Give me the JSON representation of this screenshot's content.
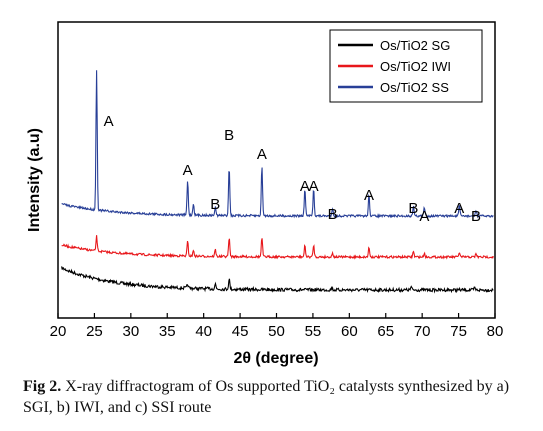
{
  "chart_data": {
    "type": "line",
    "xlabel": "2θ (degree)",
    "ylabel": "Intensity (a.u)",
    "xlim": [
      20,
      80
    ],
    "x_ticks": [
      "20",
      "25",
      "30",
      "35",
      "40",
      "45",
      "50",
      "55",
      "60",
      "65",
      "70",
      "75",
      "80"
    ],
    "grid": false,
    "legend_position": "top-right",
    "series": [
      {
        "name": "Os/TiO2 SG",
        "color": "#000000",
        "peaks": [
          [
            37.8,
            0.09
          ],
          [
            41.6,
            0.12
          ],
          [
            43.5,
            0.25
          ],
          [
            57.6,
            0.05
          ],
          [
            68.5,
            0.07
          ],
          [
            77.2,
            0.05
          ]
        ]
      },
      {
        "name": "Os/TiO2 IWI",
        "color": "#e8171b",
        "peaks": [
          [
            25.3,
            0.35
          ],
          [
            37.8,
            0.35
          ],
          [
            38.6,
            0.13
          ],
          [
            41.6,
            0.16
          ],
          [
            43.5,
            0.45
          ],
          [
            48.0,
            0.46
          ],
          [
            53.9,
            0.27
          ],
          [
            55.1,
            0.28
          ],
          [
            57.7,
            0.09
          ],
          [
            62.7,
            0.23
          ],
          [
            68.8,
            0.13
          ],
          [
            70.3,
            0.09
          ],
          [
            75.1,
            0.11
          ],
          [
            77.4,
            0.08
          ]
        ]
      },
      {
        "name": "Os/TiO2 SS",
        "color": "#283f97",
        "peaks": [
          [
            25.3,
            3.35
          ],
          [
            37.8,
            0.82
          ],
          [
            38.6,
            0.28
          ],
          [
            41.6,
            0.2
          ],
          [
            43.5,
            1.18
          ],
          [
            48.0,
            1.2
          ],
          [
            53.9,
            0.65
          ],
          [
            55.1,
            0.65
          ],
          [
            57.7,
            0.19
          ],
          [
            62.7,
            0.51
          ],
          [
            68.8,
            0.25
          ],
          [
            70.3,
            0.2
          ],
          [
            75.1,
            0.25
          ],
          [
            77.4,
            0.14
          ]
        ]
      }
    ],
    "peak_labels": [
      {
        "text": "A",
        "x": 25.3
      },
      {
        "text": "A",
        "x": 37.8
      },
      {
        "text": "B",
        "x": 41.6
      },
      {
        "text": "B",
        "x": 43.5
      },
      {
        "text": "A",
        "x": 48.0
      },
      {
        "text": "A",
        "x": 53.9
      },
      {
        "text": "A",
        "x": 55.1
      },
      {
        "text": "B",
        "x": 57.7
      },
      {
        "text": "A",
        "x": 62.7
      },
      {
        "text": "B",
        "x": 68.8
      },
      {
        "text": "A",
        "x": 70.3
      },
      {
        "text": "A",
        "x": 75.1
      },
      {
        "text": "B",
        "x": 77.4
      }
    ]
  },
  "caption": {
    "label": "Fig 2.",
    "text": "X-ray diffractogram of Os supported TiO₂ catalysts synthesized by a) SGI, b) IWI, and c) SSI route"
  }
}
